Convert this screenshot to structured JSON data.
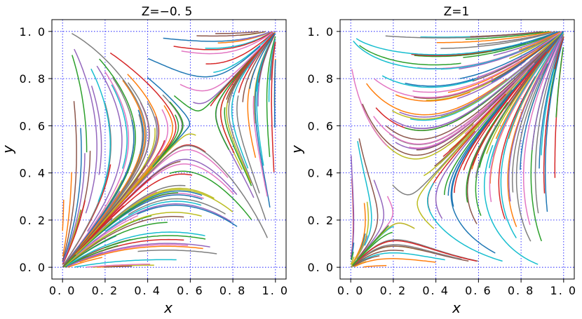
{
  "chart_data": [
    {
      "type": "line",
      "title": "Z=−0. 5",
      "xlabel": "x",
      "ylabel": "y",
      "xlim": [
        -0.05,
        1.05
      ],
      "ylim": [
        -0.05,
        1.05
      ],
      "xticks": [
        "0. 0",
        "0. 2",
        "0. 4",
        "0. 6",
        "0. 8",
        "1. 0"
      ],
      "yticks": [
        "0. 0",
        "0. 2",
        "0. 4",
        "0. 6",
        "0. 8",
        "1. 0"
      ],
      "tick_values": [
        0,
        0.2,
        0.4,
        0.6,
        0.8,
        1.0
      ],
      "grid": true,
      "grid_style": "dotted-blue",
      "series_kind": "trajectories-to-corners",
      "saddle": [
        0.62,
        0.62
      ],
      "attractors": [
        [
          0,
          0
        ],
        [
          1,
          1
        ]
      ]
    },
    {
      "type": "line",
      "title": "Z=1",
      "xlabel": "x",
      "ylabel": "y",
      "xlim": [
        -0.05,
        1.05
      ],
      "ylim": [
        -0.05,
        1.05
      ],
      "xticks": [
        "0. 0",
        "0. 2",
        "0. 4",
        "0. 6",
        "0. 8",
        "1. 0"
      ],
      "yticks": [
        "0. 0",
        "0. 2",
        "0. 4",
        "0. 6",
        "0. 8",
        "1. 0"
      ],
      "tick_values": [
        0,
        0.2,
        0.4,
        0.6,
        0.8,
        1.0
      ],
      "grid": true,
      "grid_style": "dotted-blue",
      "series_kind": "trajectories-to-corners",
      "saddle": [
        0.25,
        0.25
      ],
      "attractors": [
        [
          0,
          0
        ],
        [
          1,
          1
        ]
      ]
    }
  ],
  "colors": {
    "palette": [
      "#1f77b4",
      "#ff7f0e",
      "#2ca02c",
      "#d62728",
      "#9467bd",
      "#8c564b",
      "#e377c2",
      "#7f7f7f",
      "#bcbd22",
      "#17becf"
    ],
    "grid": "#0000ff"
  }
}
